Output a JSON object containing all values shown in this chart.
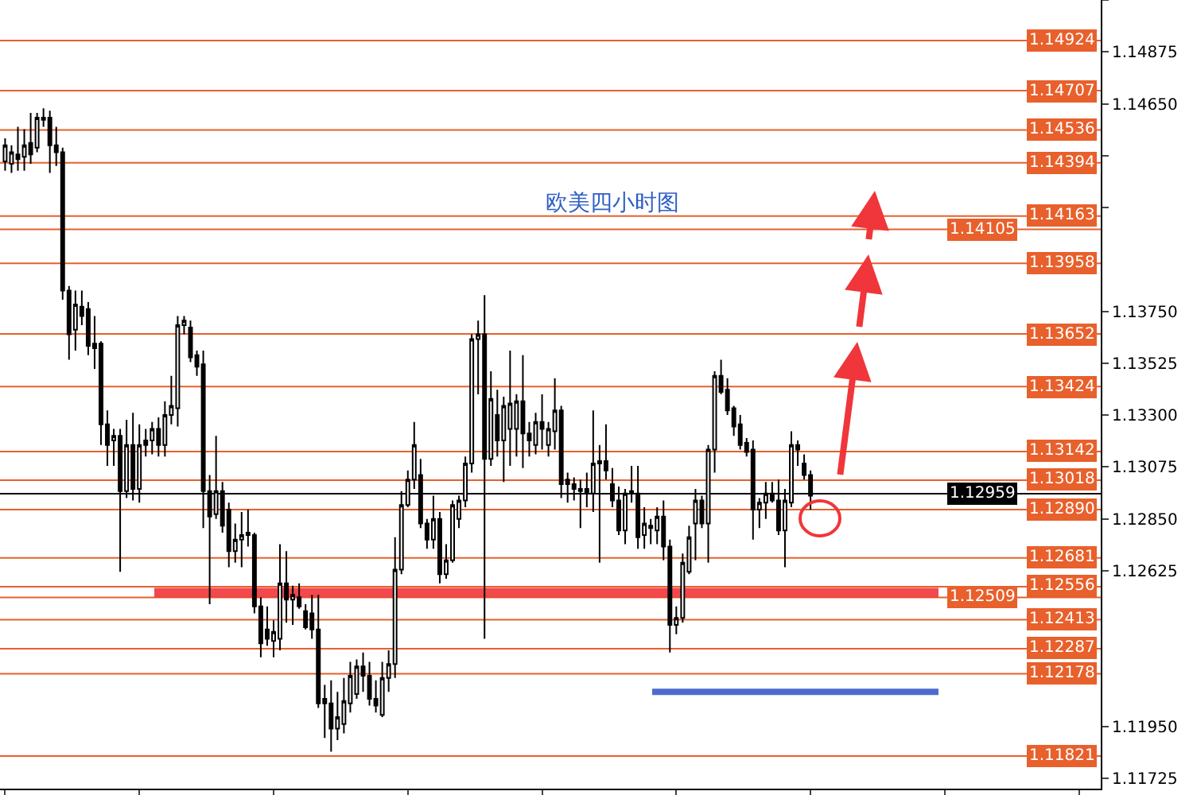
{
  "chart_data": {
    "type": "candlestick",
    "title": "欧美四小时图",
    "categories": [
      null,
      null,
      null,
      null,
      null,
      null,
      null,
      null,
      null,
      null,
      null,
      null,
      null,
      null,
      null,
      null,
      null,
      null,
      null,
      null,
      null,
      null,
      null,
      null,
      null,
      null,
      null,
      null,
      null,
      null,
      null,
      null,
      null,
      null,
      null,
      null,
      null,
      null,
      null,
      null,
      null,
      null,
      null,
      null,
      null,
      null,
      null,
      null,
      null,
      null,
      null,
      null,
      null,
      null,
      null,
      null,
      null,
      null,
      null,
      null,
      null,
      null,
      null,
      null,
      null,
      null,
      null,
      null,
      null,
      null,
      null,
      null,
      null,
      null,
      null,
      null,
      null,
      null,
      null,
      null,
      null,
      null,
      null,
      null,
      null,
      null,
      null,
      null,
      null,
      null,
      null,
      null,
      null,
      null,
      null,
      null,
      null,
      null,
      null,
      null,
      null,
      null,
      null,
      null,
      null,
      null,
      null,
      null,
      null,
      null,
      null,
      null,
      null,
      null,
      null,
      null,
      null,
      null,
      null,
      null,
      null,
      null,
      null,
      null,
      null,
      null,
      null,
      null,
      null,
      null,
      null,
      null,
      null,
      null,
      null,
      null,
      null,
      null,
      null,
      null,
      null,
      null,
      null,
      null,
      null,
      null,
      null,
      null,
      null,
      null,
      null,
      null,
      null,
      null,
      null,
      null,
      null,
      null,
      null,
      null,
      null,
      null,
      null,
      null,
      null,
      null,
      null,
      null,
      null,
      null,
      null,
      null
    ],
    "ohlc": [
      [
        1.144,
        1.145,
        1.1436,
        1.1447
      ],
      [
        1.1439,
        1.1447,
        1.1435,
        1.1444
      ],
      [
        1.1443,
        1.1455,
        1.1436,
        1.1441
      ],
      [
        1.1442,
        1.1454,
        1.1436,
        1.1447
      ],
      [
        1.1448,
        1.1461,
        1.1439,
        1.1443
      ],
      [
        1.1446,
        1.1461,
        1.1444,
        1.1459
      ],
      [
        1.1458,
        1.1463,
        1.1455,
        1.1459
      ],
      [
        1.1459,
        1.1462,
        1.1435,
        1.1447
      ],
      [
        1.1447,
        1.1455,
        1.1438,
        1.1444
      ],
      [
        1.1444,
        1.1446,
        1.138,
        1.1384
      ],
      [
        1.1384,
        1.1386,
        1.1354,
        1.1365
      ],
      [
        1.1367,
        1.1384,
        1.1358,
        1.1378
      ],
      [
        1.1377,
        1.1384,
        1.1369,
        1.1373
      ],
      [
        1.1376,
        1.1379,
        1.1356,
        1.136
      ],
      [
        1.1361,
        1.1373,
        1.135,
        1.1359
      ],
      [
        1.1361,
        1.1362,
        1.1317,
        1.1326
      ],
      [
        1.1326,
        1.1332,
        1.1308,
        1.1317
      ],
      [
        1.1319,
        1.1324,
        1.1308,
        1.1321
      ],
      [
        1.1321,
        1.1324,
        1.1262,
        1.1297
      ],
      [
        1.1297,
        1.1328,
        1.1294,
        1.1317
      ],
      [
        1.1317,
        1.1331,
        1.1293,
        1.1298
      ],
      [
        1.1298,
        1.1326,
        1.1292,
        1.1317
      ],
      [
        1.1319,
        1.1324,
        1.1312,
        1.1317
      ],
      [
        1.1319,
        1.1327,
        1.1313,
        1.1324
      ],
      [
        1.1324,
        1.1329,
        1.1312,
        1.1317
      ],
      [
        1.1317,
        1.1336,
        1.1312,
        1.133
      ],
      [
        1.133,
        1.1347,
        1.1326,
        1.1334
      ],
      [
        1.1333,
        1.1373,
        1.1325,
        1.1369
      ],
      [
        1.1369,
        1.1373,
        1.1365,
        1.1371
      ],
      [
        1.1368,
        1.1371,
        1.1353,
        1.1355
      ],
      [
        1.1356,
        1.1358,
        1.1347,
        1.1351
      ],
      [
        1.1352,
        1.1358,
        1.1281,
        1.1297
      ],
      [
        1.1297,
        1.1304,
        1.1248,
        1.1286
      ],
      [
        1.1287,
        1.1321,
        1.1285,
        1.1297
      ],
      [
        1.1297,
        1.1301,
        1.1279,
        1.1282
      ],
      [
        1.1289,
        1.1292,
        1.1264,
        1.1271
      ],
      [
        1.1271,
        1.1283,
        1.1266,
        1.1276
      ],
      [
        1.1276,
        1.1288,
        1.1264,
        1.1278
      ],
      [
        1.1278,
        1.1289,
        1.1273,
        1.1279
      ],
      [
        1.1278,
        1.1279,
        1.1244,
        1.1247
      ],
      [
        1.1247,
        1.1251,
        1.1225,
        1.1231
      ],
      [
        1.1237,
        1.1247,
        1.123,
        1.1233
      ],
      [
        1.1232,
        1.1241,
        1.1225,
        1.1236
      ],
      [
        1.1233,
        1.1274,
        1.1228,
        1.1257
      ],
      [
        1.1257,
        1.1271,
        1.124,
        1.125
      ],
      [
        1.125,
        1.1256,
        1.1239,
        1.1252
      ],
      [
        1.1251,
        1.1257,
        1.1246,
        1.1247
      ],
      [
        1.1245,
        1.1248,
        1.1237,
        1.1238
      ],
      [
        1.1244,
        1.1252,
        1.1233,
        1.1237
      ],
      [
        1.1237,
        1.1252,
        1.1203,
        1.1205
      ],
      [
        1.1207,
        1.1213,
        1.119,
        1.1205
      ],
      [
        1.1205,
        1.1215,
        1.1184,
        1.1194
      ],
      [
        1.1194,
        1.121,
        1.1189,
        1.1199
      ],
      [
        1.1196,
        1.1216,
        1.1192,
        1.1206
      ],
      [
        1.1205,
        1.1223,
        1.1201,
        1.1217
      ],
      [
        1.1209,
        1.1224,
        1.1207,
        1.1221
      ],
      [
        1.1221,
        1.1227,
        1.121,
        1.1217
      ],
      [
        1.1217,
        1.1223,
        1.1204,
        1.1207
      ],
      [
        1.1207,
        1.1215,
        1.1201,
        1.1204
      ],
      [
        1.12,
        1.1223,
        1.1199,
        1.1216
      ],
      [
        1.1216,
        1.1228,
        1.121,
        1.1222
      ],
      [
        1.1222,
        1.1277,
        1.1216,
        1.1263
      ],
      [
        1.1263,
        1.1297,
        1.1261,
        1.1291
      ],
      [
        1.1291,
        1.1306,
        1.129,
        1.1302
      ],
      [
        1.1302,
        1.1327,
        1.1298,
        1.1317
      ],
      [
        1.1304,
        1.1311,
        1.1281,
        1.1283
      ],
      [
        1.1283,
        1.1285,
        1.1272,
        1.1276
      ],
      [
        1.1276,
        1.1295,
        1.1272,
        1.1285
      ],
      [
        1.1285,
        1.1288,
        1.1257,
        1.1261
      ],
      [
        1.1261,
        1.1274,
        1.1259,
        1.1267
      ],
      [
        1.1267,
        1.1293,
        1.1266,
        1.1291
      ],
      [
        1.1285,
        1.1295,
        1.1281,
        1.1293
      ],
      [
        1.1293,
        1.1312,
        1.129,
        1.1309
      ],
      [
        1.1309,
        1.1365,
        1.1305,
        1.1363
      ],
      [
        1.1363,
        1.1371,
        1.1339,
        1.1365
      ],
      [
        1.1365,
        1.1382,
        1.1233,
        1.1311
      ],
      [
        1.1311,
        1.1349,
        1.1308,
        1.1337
      ],
      [
        1.133,
        1.1341,
        1.1312,
        1.1319
      ],
      [
        1.1319,
        1.1338,
        1.1301,
        1.1334
      ],
      [
        1.1324,
        1.1358,
        1.1308,
        1.1335
      ],
      [
        1.1324,
        1.1339,
        1.1312,
        1.1336
      ],
      [
        1.1336,
        1.1356,
        1.1307,
        1.1322
      ],
      [
        1.1322,
        1.1327,
        1.1312,
        1.1319
      ],
      [
        1.1317,
        1.1331,
        1.1313,
        1.1327
      ],
      [
        1.1327,
        1.1339,
        1.1315,
        1.1324
      ],
      [
        1.1317,
        1.1327,
        1.1312,
        1.1324
      ],
      [
        1.1323,
        1.1346,
        1.1315,
        1.1332
      ],
      [
        1.1332,
        1.1334,
        1.1294,
        1.13
      ],
      [
        1.1302,
        1.1305,
        1.1292,
        1.13
      ],
      [
        1.13,
        1.1303,
        1.1293,
        1.1298
      ],
      [
        1.1298,
        1.1302,
        1.1281,
        1.1297
      ],
      [
        1.1298,
        1.1305,
        1.129,
        1.1296
      ],
      [
        1.1296,
        1.1332,
        1.1288,
        1.1309
      ],
      [
        1.1309,
        1.1317,
        1.1266,
        1.131
      ],
      [
        1.131,
        1.1326,
        1.1302,
        1.1306
      ],
      [
        1.13,
        1.1307,
        1.129,
        1.1293
      ],
      [
        1.1293,
        1.1299,
        1.1278,
        1.128
      ],
      [
        1.128,
        1.1298,
        1.1274,
        1.1296
      ],
      [
        1.1296,
        1.1308,
        1.1292,
        1.1297
      ],
      [
        1.1296,
        1.1308,
        1.1272,
        1.1277
      ],
      [
        1.1278,
        1.129,
        1.1272,
        1.1283
      ],
      [
        1.1281,
        1.1285,
        1.1274,
        1.1282
      ],
      [
        1.128,
        1.129,
        1.1274,
        1.1286
      ],
      [
        1.1286,
        1.1293,
        1.1267,
        1.1273
      ],
      [
        1.1273,
        1.1276,
        1.1227,
        1.1239
      ],
      [
        1.1239,
        1.1247,
        1.1235,
        1.1242
      ],
      [
        1.1242,
        1.127,
        1.124,
        1.1266
      ],
      [
        1.1262,
        1.1282,
        1.1261,
        1.1277
      ],
      [
        1.1283,
        1.1298,
        1.1267,
        1.1293
      ],
      [
        1.1293,
        1.1295,
        1.1281,
        1.1283
      ],
      [
        1.1283,
        1.1317,
        1.1266,
        1.1315
      ],
      [
        1.1315,
        1.1349,
        1.1305,
        1.1347
      ],
      [
        1.1347,
        1.1354,
        1.1339,
        1.134
      ],
      [
        1.1341,
        1.1346,
        1.133,
        1.1332
      ],
      [
        1.1333,
        1.1334,
        1.1321,
        1.1325
      ],
      [
        1.1326,
        1.133,
        1.1315,
        1.1317
      ],
      [
        1.1318,
        1.132,
        1.1312,
        1.1314
      ],
      [
        1.1315,
        1.1319,
        1.1276,
        1.1289
      ],
      [
        1.1289,
        1.1294,
        1.1281,
        1.1292
      ],
      [
        1.1292,
        1.1301,
        1.1285,
        1.1296
      ],
      [
        1.1296,
        1.1301,
        1.1292,
        1.1293
      ],
      [
        1.1293,
        1.1302,
        1.1278,
        1.128
      ],
      [
        1.128,
        1.1298,
        1.1264,
        1.1293
      ],
      [
        1.1292,
        1.1323,
        1.129,
        1.1317
      ],
      [
        1.1317,
        1.1319,
        1.1308,
        1.1315
      ],
      [
        1.1309,
        1.1313,
        1.1302,
        1.1304
      ],
      [
        1.1304,
        1.1306,
        1.1289,
        1.1295
      ],
      null,
      null,
      null,
      null,
      null,
      null,
      null,
      null,
      null,
      null,
      null,
      null,
      null,
      null,
      null,
      null,
      null,
      null,
      null,
      null,
      null,
      null,
      null,
      null,
      null,
      null,
      null,
      null,
      null,
      null,
      null,
      null,
      null,
      null,
      null,
      null,
      null,
      null,
      null,
      null,
      null,
      null,
      null,
      null,
      null
    ],
    "ylim": [
      1.1168,
      1.151
    ],
    "yticks": [
      {
        "value": 1.151,
        "label": null
      },
      1.14875,
      {
        "value": 1.1465,
        "label": "1.14650"
      },
      {
        "value": 1.14425,
        "label": null
      },
      {
        "value": 1.142,
        "label": null
      },
      {
        "value": 1.1375,
        "label": "1.13750"
      },
      1.13525,
      {
        "value": 1.133,
        "label": "1.13300"
      },
      1.13075,
      {
        "value": 1.1285,
        "label": "1.12850"
      },
      1.12625,
      {
        "value": 1.1195,
        "label": "1.11950"
      },
      1.11725
    ],
    "tick_labels": "y",
    "legend": false,
    "ref_lines": [
      {
        "axis": "y",
        "value": 1.14924,
        "label": "1.14924",
        "color": "#e8602c"
      },
      {
        "axis": "y",
        "value": 1.14707,
        "label": "1.14707",
        "color": "#e8602c"
      },
      {
        "axis": "y",
        "value": 1.14536,
        "label": "1.14536",
        "color": "#e8602c"
      },
      {
        "axis": "y",
        "value": 1.14394,
        "label": "1.14394",
        "color": "#e8602c"
      },
      {
        "axis": "y",
        "value": 1.14163,
        "label": "1.14163",
        "color": "#e8602c"
      },
      {
        "axis": "y",
        "value": 1.14105,
        "label": "1.14105",
        "color": "#e8602c"
      },
      {
        "axis": "y",
        "value": 1.13958,
        "label": "1.13958",
        "color": "#e8602c"
      },
      {
        "axis": "y",
        "value": 1.13652,
        "label": "1.13652",
        "color": "#e8602c"
      },
      {
        "axis": "y",
        "value": 1.13424,
        "label": "1.13424",
        "color": "#e8602c"
      },
      {
        "axis": "y",
        "value": 1.13142,
        "label": "1.13142",
        "color": "#e8602c"
      },
      {
        "axis": "y",
        "value": 1.13018,
        "label": "1.13018",
        "color": "#e8602c"
      },
      {
        "axis": "y",
        "value": 1.12959,
        "label": "1.12959",
        "color": "#000000"
      },
      {
        "axis": "y",
        "value": 1.1289,
        "label": "1.12890",
        "color": "#e8602c"
      },
      {
        "axis": "y",
        "value": 1.12681,
        "label": "1.12681",
        "color": "#e8602c"
      },
      {
        "axis": "y",
        "value": 1.12556,
        "label": "1.12556",
        "color": "#e8602c"
      },
      {
        "axis": "y",
        "value": 1.12509,
        "label": "1.12509",
        "color": "#e8602c"
      },
      {
        "axis": "y",
        "value": 1.12413,
        "label": "1.12413",
        "color": "#e8602c"
      },
      {
        "axis": "y",
        "value": 1.12287,
        "label": "1.12287",
        "color": "#e8602c"
      },
      {
        "axis": "y",
        "value": 1.12178,
        "label": "1.12178",
        "color": "#e8602c"
      },
      {
        "axis": "y",
        "value": 1.11821,
        "label": "1.11821",
        "color": "#e8602c"
      },
      {
        "axis": "y",
        "value": 1.1253,
        "color": "#f0363a"
      },
      {
        "axis": "y",
        "value": 1.121,
        "color": "#3a5cc8"
      }
    ]
  }
}
